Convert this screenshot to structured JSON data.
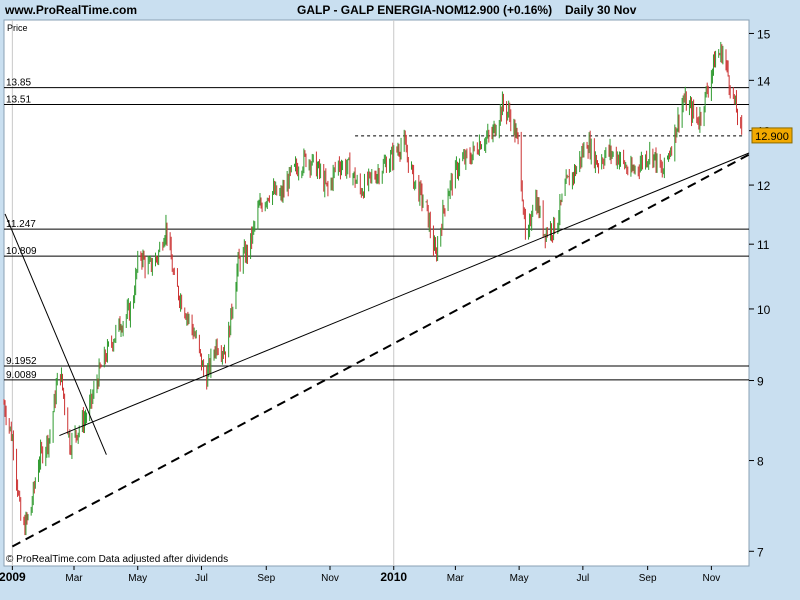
{
  "header": {
    "site": "www.ProRealTime.com",
    "instrument": "GALP - GALP ENERGIA-NOM",
    "quote": "12.900 (+0.16%)",
    "period": "Daily  30 Nov"
  },
  "plot_label": "Price",
  "footer": "© ProRealTime.com  Data adjusted after dividends",
  "colors": {
    "background": "#c9dff0",
    "plot": "#ffffff",
    "up": "#2f9a2f",
    "down": "#cc3333",
    "price_badge": "#f2a900"
  },
  "chart_data": {
    "type": "candlestick",
    "title": "GALP - GALP ENERGIA-NOM",
    "ylabel": "Price",
    "y_scale": "log",
    "ylim": [
      6.85,
      15.3
    ],
    "x_range": [
      "2008-12-24",
      "2010-12-07"
    ],
    "y_ticks": [
      7,
      8,
      9,
      10,
      11,
      12,
      13,
      14,
      15
    ],
    "x_ticks": [
      {
        "date": "2009-01-01",
        "label": "2009"
      },
      {
        "date": "2009-03-01",
        "label": "Mar"
      },
      {
        "date": "2009-05-01",
        "label": "May"
      },
      {
        "date": "2009-07-01",
        "label": "Jul"
      },
      {
        "date": "2009-09-01",
        "label": "Sep"
      },
      {
        "date": "2009-11-01",
        "label": "Nov"
      },
      {
        "date": "2010-01-01",
        "label": "2010"
      },
      {
        "date": "2010-03-01",
        "label": "Mar"
      },
      {
        "date": "2010-05-01",
        "label": "May"
      },
      {
        "date": "2010-07-01",
        "label": "Jul"
      },
      {
        "date": "2010-09-01",
        "label": "Sep"
      },
      {
        "date": "2010-11-01",
        "label": "Nov"
      }
    ],
    "horizontal_levels": [
      {
        "value": 13.85,
        "label": "13.85"
      },
      {
        "value": 13.51,
        "label": "13.51"
      },
      {
        "value": 11.247,
        "label": "11.247"
      },
      {
        "value": 10.809,
        "label": "10.809"
      },
      {
        "value": 9.1952,
        "label": "9.1952"
      },
      {
        "value": 9.0089,
        "label": "9.0089"
      }
    ],
    "resistance_dotted": {
      "value": 12.9,
      "from": "2009-11-25",
      "to": "2010-12-01"
    },
    "trendlines": [
      {
        "style": "solid",
        "points": [
          [
            "2009-02-15",
            8.3
          ],
          [
            "2010-12-07",
            12.58
          ]
        ]
      },
      {
        "style": "solid",
        "points": [
          [
            "2008-12-25",
            11.5
          ],
          [
            "2009-04-01",
            8.07
          ]
        ]
      },
      {
        "style": "dashed",
        "points": [
          [
            "2009-01-01",
            7.05
          ],
          [
            "2010-12-07",
            12.55
          ]
        ]
      }
    ],
    "last_price": 12.9,
    "price_path": [
      [
        "2008-12-24",
        8.7
      ],
      [
        "2009-01-02",
        8.2
      ],
      [
        "2009-01-10",
        7.2
      ],
      [
        "2009-01-18",
        7.4
      ],
      [
        "2009-01-26",
        8.0
      ],
      [
        "2009-02-06",
        8.3
      ],
      [
        "2009-02-15",
        9.2
      ],
      [
        "2009-02-25",
        8.2
      ],
      [
        "2009-03-06",
        8.4
      ],
      [
        "2009-03-15",
        8.6
      ],
      [
        "2009-03-25",
        9.1
      ],
      [
        "2009-04-05",
        9.5
      ],
      [
        "2009-04-15",
        9.8
      ],
      [
        "2009-04-25",
        10.0
      ],
      [
        "2009-05-03",
        10.9
      ],
      [
        "2009-05-10",
        10.6
      ],
      [
        "2009-05-20",
        10.8
      ],
      [
        "2009-05-28",
        11.3
      ],
      [
        "2009-06-05",
        10.4
      ],
      [
        "2009-06-15",
        10.0
      ],
      [
        "2009-06-25",
        9.6
      ],
      [
        "2009-07-05",
        9.0
      ],
      [
        "2009-07-15",
        9.5
      ],
      [
        "2009-07-25",
        9.4
      ],
      [
        "2009-08-05",
        10.7
      ],
      [
        "2009-08-15",
        10.9
      ],
      [
        "2009-08-25",
        11.6
      ],
      [
        "2009-09-05",
        11.9
      ],
      [
        "2009-09-15",
        11.8
      ],
      [
        "2009-09-25",
        12.2
      ],
      [
        "2009-10-05",
        12.4
      ],
      [
        "2009-10-10",
        12.5
      ],
      [
        "2009-10-20",
        12.3
      ],
      [
        "2009-10-30",
        11.9
      ],
      [
        "2009-11-08",
        12.4
      ],
      [
        "2009-11-20",
        12.3
      ],
      [
        "2009-11-30",
        11.9
      ],
      [
        "2009-12-10",
        12.1
      ],
      [
        "2009-12-20",
        12.3
      ],
      [
        "2009-12-30",
        12.5
      ],
      [
        "2010-01-10",
        12.8
      ],
      [
        "2010-01-20",
        12.1
      ],
      [
        "2010-02-01",
        11.6
      ],
      [
        "2010-02-10",
        10.8
      ],
      [
        "2010-02-20",
        11.8
      ],
      [
        "2010-03-05",
        12.4
      ],
      [
        "2010-03-15",
        12.5
      ],
      [
        "2010-03-25",
        12.8
      ],
      [
        "2010-04-05",
        12.9
      ],
      [
        "2010-04-15",
        13.5
      ],
      [
        "2010-04-22",
        13.3
      ],
      [
        "2010-05-01",
        12.7
      ],
      [
        "2010-05-08",
        10.8
      ],
      [
        "2010-05-15",
        11.9
      ],
      [
        "2010-05-25",
        11.2
      ],
      [
        "2010-06-05",
        11.3
      ],
      [
        "2010-06-15",
        12.0
      ],
      [
        "2010-06-25",
        12.3
      ],
      [
        "2010-07-05",
        12.8
      ],
      [
        "2010-07-15",
        12.4
      ],
      [
        "2010-07-25",
        12.6
      ],
      [
        "2010-08-05",
        12.5
      ],
      [
        "2010-08-15",
        12.2
      ],
      [
        "2010-08-25",
        12.4
      ],
      [
        "2010-09-05",
        12.6
      ],
      [
        "2010-09-15",
        12.2
      ],
      [
        "2010-09-25",
        12.8
      ],
      [
        "2010-10-05",
        13.6
      ],
      [
        "2010-10-12",
        13.4
      ],
      [
        "2010-10-20",
        13.2
      ],
      [
        "2010-10-28",
        13.8
      ],
      [
        "2010-11-05",
        14.5
      ],
      [
        "2010-11-12",
        14.6
      ],
      [
        "2010-11-20",
        13.8
      ],
      [
        "2010-11-26",
        13.3
      ],
      [
        "2010-11-30",
        12.9
      ]
    ]
  }
}
